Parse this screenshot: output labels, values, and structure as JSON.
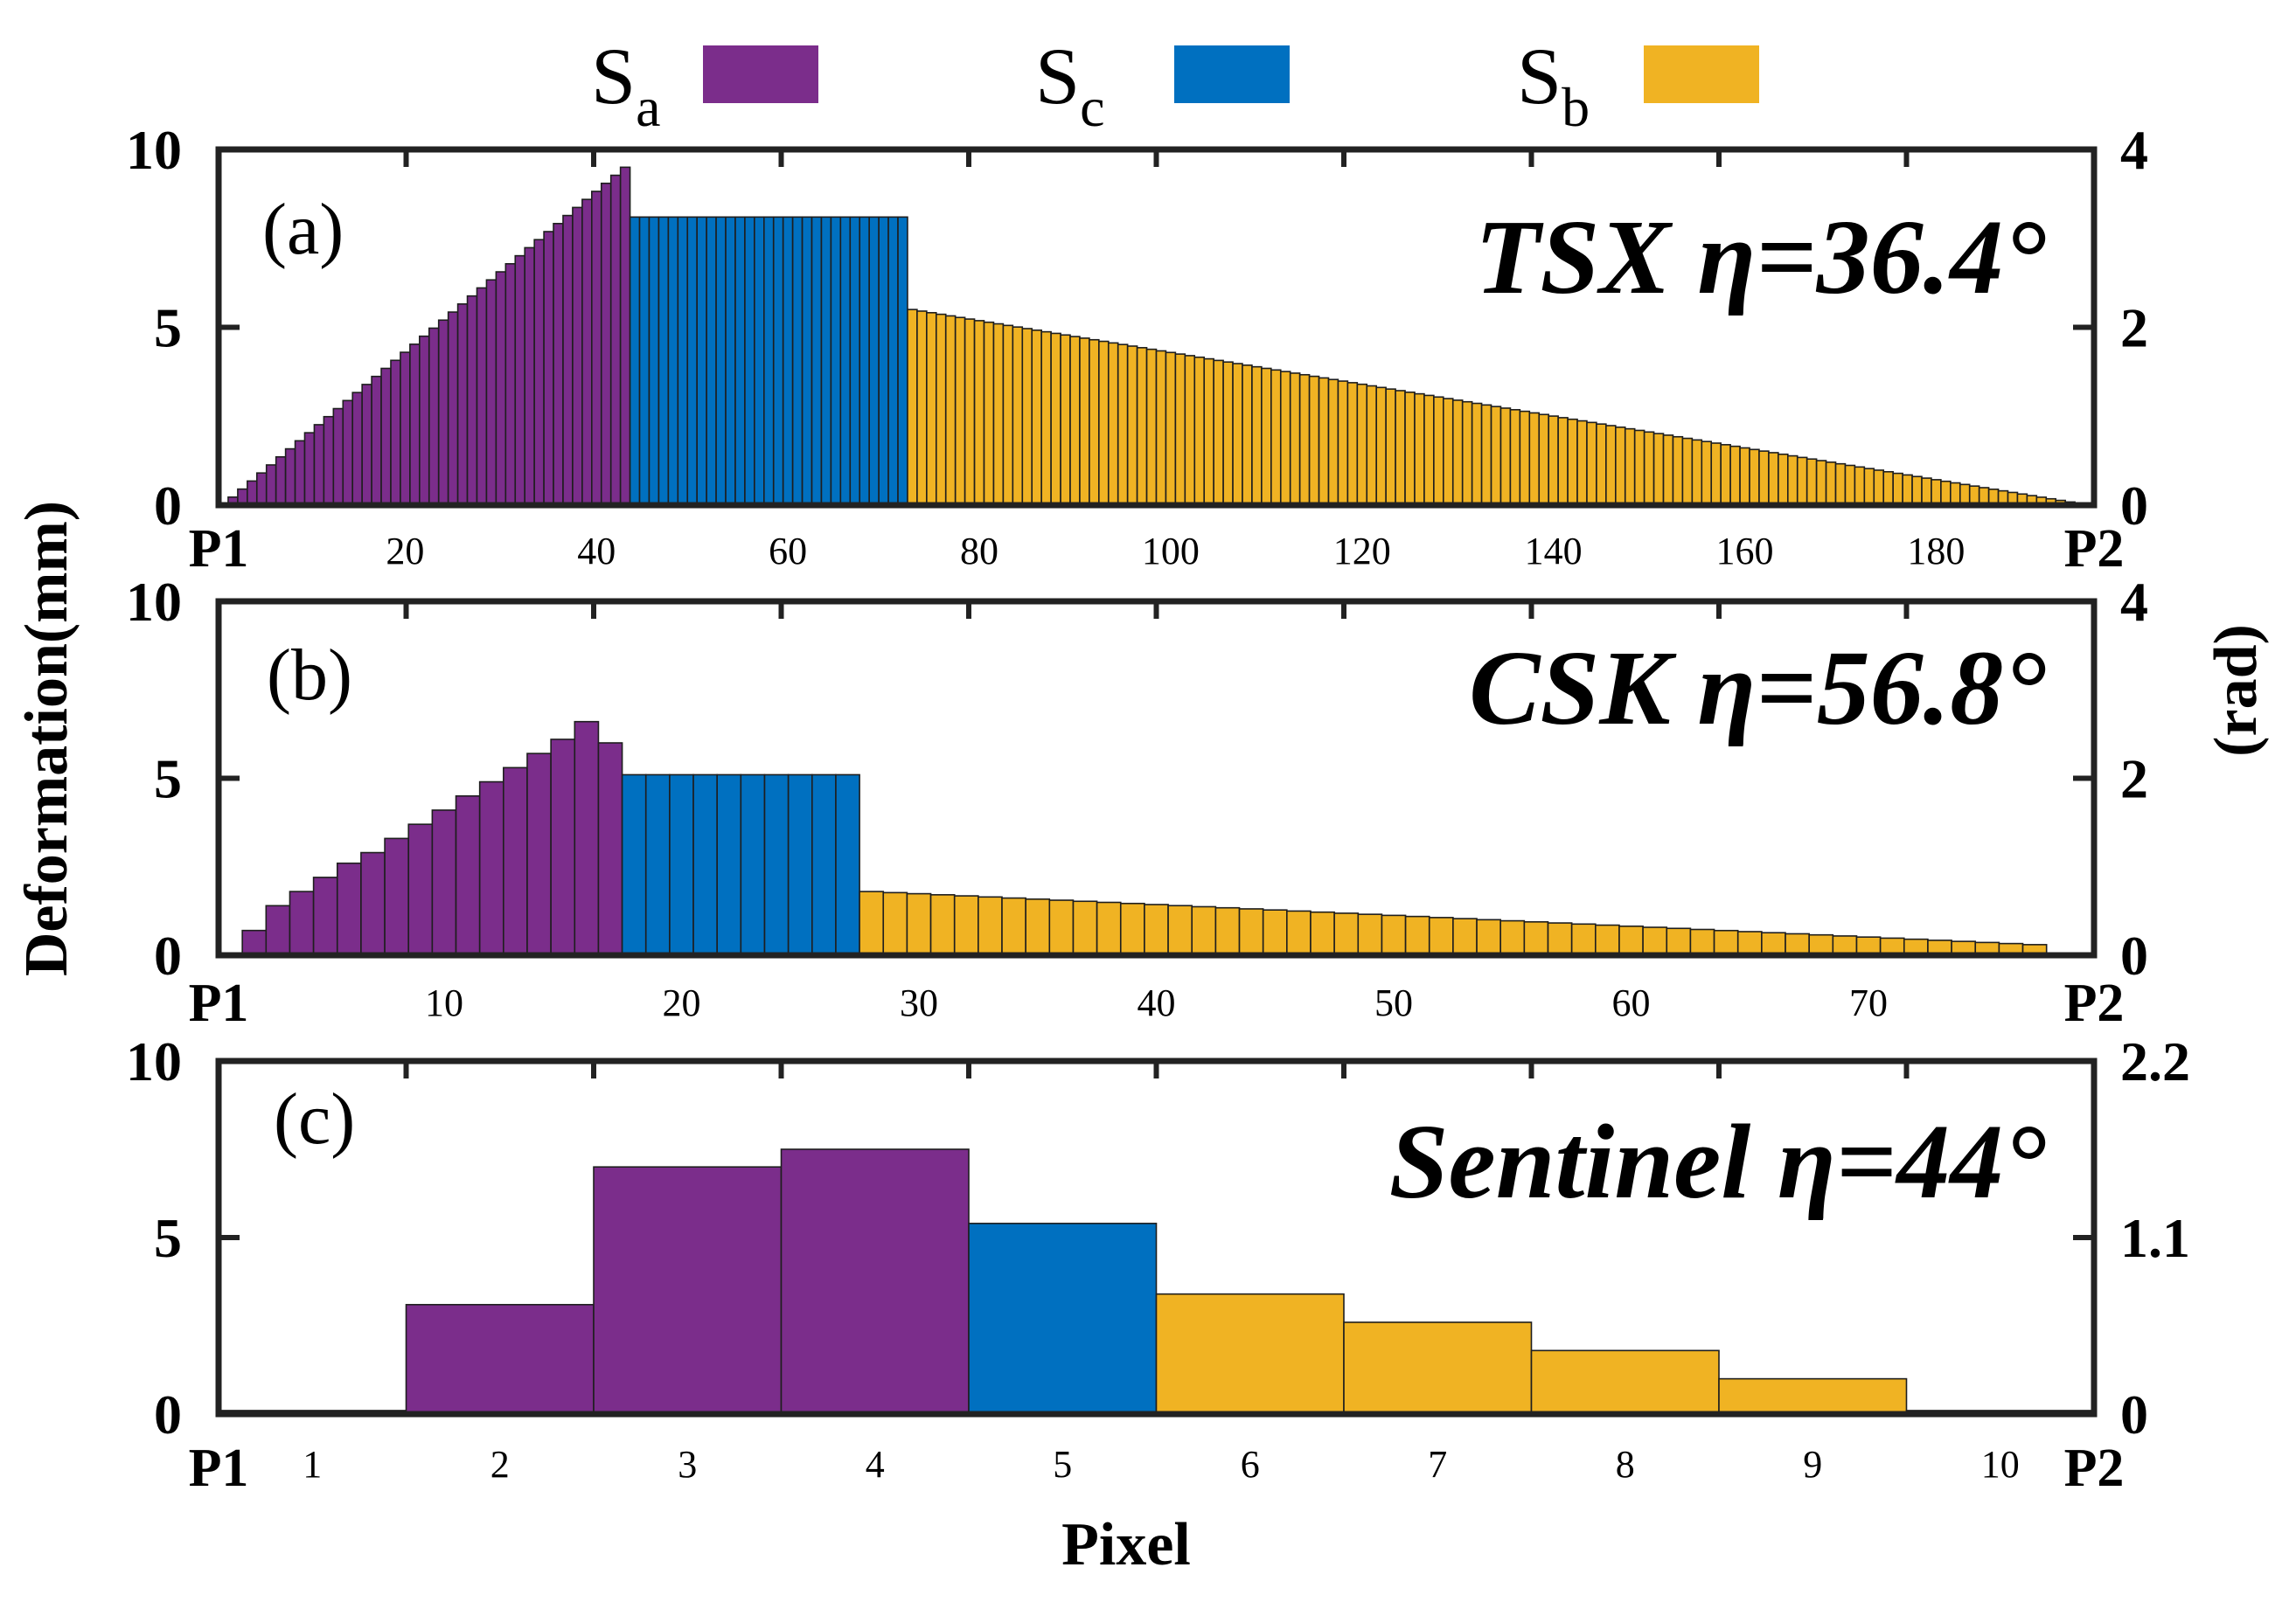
{
  "legend": {
    "items": [
      {
        "main": "S",
        "sub": "a",
        "color": "#7B2D8B"
      },
      {
        "main": "S",
        "sub": "c",
        "color": "#0070C0"
      },
      {
        "main": "S",
        "sub": "b",
        "color": "#F0B323"
      }
    ]
  },
  "axes": {
    "ylabel_left": "Deformation(mm)",
    "ylabel_right": "(rad)",
    "xlabel": "Pixel",
    "start_label": "P1",
    "end_label": "P2"
  },
  "colors": {
    "Sa": "#7B2D8B",
    "Sc": "#0070C0",
    "Sb": "#F0B323",
    "frame": "#222222"
  },
  "chart_data": [
    {
      "type": "bar",
      "panel_label": "(a)",
      "title": "TSX  η=36.4°",
      "x_range": [
        1,
        196
      ],
      "xticks": [
        20,
        40,
        60,
        80,
        100,
        120,
        140,
        160,
        180
      ],
      "ylim_left": [
        0,
        10
      ],
      "yticks_left": [
        0,
        5,
        10
      ],
      "ylim_right": [
        0,
        4
      ],
      "yticks_right": [
        "0",
        "2",
        "4"
      ],
      "segments": [
        {
          "name": "Sa",
          "from": 1,
          "to": 43,
          "start_value": 0.0,
          "end_value": 9.5
        },
        {
          "name": "Sc",
          "from": 44,
          "to": 72,
          "start_value": 8.1,
          "end_value": 8.1
        },
        {
          "name": "Sb",
          "from": 73,
          "to": 196,
          "start_value": 5.5,
          "end_value": 0.0
        }
      ]
    },
    {
      "type": "bar",
      "panel_label": "(b)",
      "title": "CSK  η=56.8°",
      "x_range": [
        1,
        79
      ],
      "xticks": [
        10,
        20,
        30,
        40,
        50,
        60,
        70
      ],
      "ylim_left": [
        0,
        10
      ],
      "yticks_left": [
        0,
        5,
        10
      ],
      "ylim_right": [
        0,
        4
      ],
      "yticks_right": [
        "0",
        "2",
        "4"
      ],
      "bars": [
        {
          "x": 1,
          "value": 0.0,
          "series": "Sa"
        },
        {
          "x": 2,
          "value": 0.7,
          "series": "Sa"
        },
        {
          "x": 3,
          "value": 1.4,
          "series": "Sa"
        },
        {
          "x": 4,
          "value": 1.8,
          "series": "Sa"
        },
        {
          "x": 5,
          "value": 2.2,
          "series": "Sa"
        },
        {
          "x": 6,
          "value": 2.6,
          "series": "Sa"
        },
        {
          "x": 7,
          "value": 2.9,
          "series": "Sa"
        },
        {
          "x": 8,
          "value": 3.3,
          "series": "Sa"
        },
        {
          "x": 9,
          "value": 3.7,
          "series": "Sa"
        },
        {
          "x": 10,
          "value": 4.1,
          "series": "Sa"
        },
        {
          "x": 11,
          "value": 4.5,
          "series": "Sa"
        },
        {
          "x": 12,
          "value": 4.9,
          "series": "Sa"
        },
        {
          "x": 13,
          "value": 5.3,
          "series": "Sa"
        },
        {
          "x": 14,
          "value": 5.7,
          "series": "Sa"
        },
        {
          "x": 15,
          "value": 6.1,
          "series": "Sa"
        },
        {
          "x": 16,
          "value": 6.6,
          "series": "Sa"
        },
        {
          "x": 17,
          "value": 6.0,
          "series": "Sa"
        },
        {
          "x": 18,
          "value": 5.1,
          "series": "Sc"
        },
        {
          "x": 19,
          "value": 5.1,
          "series": "Sc"
        },
        {
          "x": 20,
          "value": 5.1,
          "series": "Sc"
        },
        {
          "x": 21,
          "value": 5.1,
          "series": "Sc"
        },
        {
          "x": 22,
          "value": 5.1,
          "series": "Sc"
        },
        {
          "x": 23,
          "value": 5.1,
          "series": "Sc"
        },
        {
          "x": 24,
          "value": 5.1,
          "series": "Sc"
        },
        {
          "x": 25,
          "value": 5.1,
          "series": "Sc"
        },
        {
          "x": 26,
          "value": 5.1,
          "series": "Sc"
        },
        {
          "x": 27,
          "value": 5.1,
          "series": "Sc"
        }
      ],
      "segments": [
        {
          "name": "Sb",
          "from": 28,
          "to": 77,
          "start_value": 1.8,
          "end_value": 0.3
        }
      ]
    },
    {
      "type": "bar",
      "panel_label": "(c)",
      "title": "Sentinel  η=44°",
      "x_range": [
        0.5,
        10.5
      ],
      "xticks": [
        1,
        2,
        3,
        4,
        5,
        6,
        7,
        8,
        9,
        10
      ],
      "ylim_left": [
        0,
        10
      ],
      "yticks_left": [
        0,
        5,
        10
      ],
      "ylim_right": [
        0,
        2.2
      ],
      "yticks_right": [
        "0",
        "1.1",
        "2.2"
      ],
      "bars": [
        {
          "x": 1,
          "value": 0.1,
          "series": "Sa"
        },
        {
          "x": 2,
          "value": 3.1,
          "series": "Sa"
        },
        {
          "x": 3,
          "value": 7.0,
          "series": "Sa"
        },
        {
          "x": 4,
          "value": 7.5,
          "series": "Sa"
        },
        {
          "x": 5,
          "value": 5.4,
          "series": "Sc"
        },
        {
          "x": 6,
          "value": 3.4,
          "series": "Sb"
        },
        {
          "x": 7,
          "value": 2.6,
          "series": "Sb"
        },
        {
          "x": 8,
          "value": 1.8,
          "series": "Sb"
        },
        {
          "x": 9,
          "value": 1.0,
          "series": "Sb"
        },
        {
          "x": 10,
          "value": 0.1,
          "series": "Sb"
        }
      ]
    }
  ]
}
